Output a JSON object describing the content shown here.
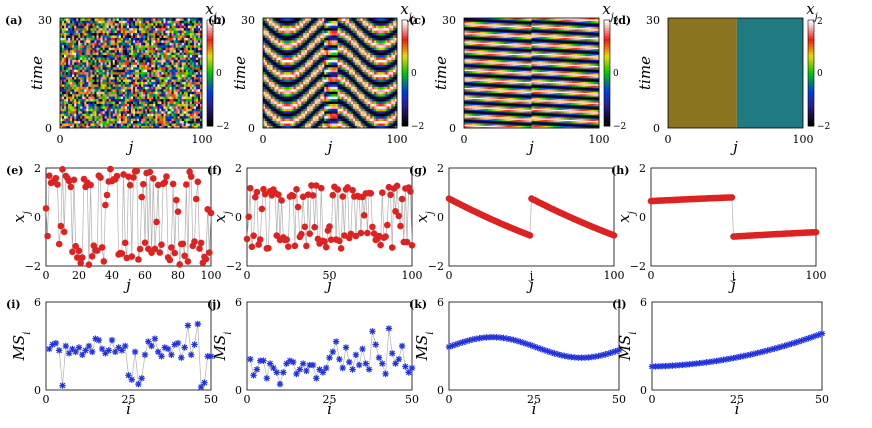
{
  "chart_data": [
    {
      "id": "a",
      "label": "(a)",
      "type": "heatmap",
      "xlabel": "j",
      "ylabel": "time",
      "colorbar_label": "x_j",
      "xticks": [
        "0",
        "100"
      ],
      "yticks": [
        "0",
        "30"
      ],
      "colorbar_ticks": [
        "2",
        "0",
        "−2"
      ],
      "xlim": [
        0,
        100
      ],
      "ylim": [
        0,
        30
      ],
      "clim": [
        -2,
        2
      ],
      "pattern": "incoherent"
    },
    {
      "id": "b",
      "label": "(b)",
      "type": "heatmap",
      "xlabel": "j",
      "ylabel": "time",
      "colorbar_label": "x_j",
      "xticks": [
        "0",
        "100"
      ],
      "yticks": [
        "0",
        "30"
      ],
      "colorbar_ticks": [
        "2",
        "0",
        "−2"
      ],
      "xlim": [
        0,
        100
      ],
      "ylim": [
        0,
        30
      ],
      "clim": [
        -2,
        2
      ],
      "pattern": "chimera-waves"
    },
    {
      "id": "c",
      "label": "(c)",
      "type": "heatmap",
      "xlabel": "j",
      "ylabel": "time",
      "colorbar_label": "x_j",
      "xticks": [
        "0",
        "100"
      ],
      "yticks": [
        "0",
        "30"
      ],
      "colorbar_ticks": [
        "2",
        "0",
        "−2"
      ],
      "xlim": [
        0,
        100
      ],
      "ylim": [
        0,
        30
      ],
      "clim": [
        -2,
        2
      ],
      "pattern": "traveling-wave"
    },
    {
      "id": "d",
      "label": "(d)",
      "type": "heatmap",
      "xlabel": "j",
      "ylabel": "time",
      "colorbar_label": "x_j",
      "xticks": [
        "0",
        "100"
      ],
      "yticks": [
        "0",
        "30"
      ],
      "colorbar_ticks": [
        "2",
        "0",
        "−2"
      ],
      "xlim": [
        0,
        100
      ],
      "ylim": [
        0,
        30
      ],
      "clim": [
        -2,
        2
      ],
      "pattern": "steady-two-cluster"
    },
    {
      "id": "e",
      "label": "(e)",
      "type": "scatter",
      "xlabel": "j",
      "ylabel": "x_j",
      "xticks": [
        "0",
        "20",
        "40",
        "60",
        "80",
        "100"
      ],
      "yticks": [
        "−2",
        "0",
        "2"
      ],
      "xlim": [
        0,
        100
      ],
      "ylim": [
        -2,
        2
      ],
      "color": "#dd2222",
      "marker": "circle",
      "connect": true,
      "pattern": "random-2"
    },
    {
      "id": "f",
      "label": "(f)",
      "type": "scatter",
      "xlabel": "j",
      "ylabel": "x_j",
      "xticks": [
        "0",
        "50",
        "100"
      ],
      "yticks": [
        "−2",
        "0",
        "2"
      ],
      "xlim": [
        0,
        100
      ],
      "ylim": [
        -2,
        2
      ],
      "color": "#dd2222",
      "marker": "circle",
      "connect": true,
      "pattern": "random-1.3"
    },
    {
      "id": "g",
      "label": "(g)",
      "type": "line",
      "xlabel": "j",
      "ylabel": "x_j",
      "xticks": [
        "0",
        "j",
        "100"
      ],
      "yticks": [
        "−2",
        "0",
        "2"
      ],
      "xlim": [
        0,
        100
      ],
      "ylim": [
        -2,
        2
      ],
      "color": "#dd2222",
      "marker": "circle",
      "connect": true,
      "segments": [
        [
          0,
          0.75,
          49,
          -0.75
        ],
        [
          50,
          0.75,
          100,
          -0.75
        ]
      ]
    },
    {
      "id": "h",
      "label": "(h)",
      "type": "line",
      "xlabel": "j",
      "ylabel": "x_j",
      "xticks": [
        "0",
        "j",
        "100"
      ],
      "yticks": [
        "−2",
        "0",
        "2"
      ],
      "xlim": [
        0,
        100
      ],
      "ylim": [
        -2,
        2
      ],
      "color": "#dd2222",
      "marker": "circle",
      "connect": true,
      "segments": [
        [
          0,
          0.65,
          49,
          0.8
        ],
        [
          50,
          -0.8,
          100,
          -0.62
        ]
      ]
    },
    {
      "id": "i",
      "label": "(i)",
      "type": "scatter",
      "xlabel": "i",
      "ylabel": "MS_i",
      "xticks": [
        "0",
        "25",
        "50"
      ],
      "yticks": [
        "0",
        "6"
      ],
      "xlim": [
        0,
        50
      ],
      "ylim": [
        0,
        6
      ],
      "color": "#2233dd",
      "marker": "star",
      "connect": true,
      "x": [
        1,
        2,
        3,
        4,
        5,
        6,
        7,
        8,
        9,
        10,
        11,
        12,
        13,
        14,
        15,
        16,
        17,
        18,
        19,
        20,
        21,
        22,
        23,
        24,
        25,
        26,
        27,
        28,
        29,
        30,
        31,
        32,
        33,
        34,
        35,
        36,
        37,
        38,
        39,
        40,
        41,
        42,
        43,
        44,
        45,
        46,
        47,
        48,
        49,
        50
      ],
      "y": [
        2.8,
        3.1,
        3.2,
        2.7,
        0.3,
        3.0,
        2.5,
        2.8,
        2.6,
        2.9,
        2.4,
        2.7,
        3.0,
        2.6,
        3.5,
        3.4,
        2.8,
        2.5,
        2.7,
        3.4,
        2.6,
        2.9,
        2.7,
        3.0,
        1.0,
        0.7,
        2.6,
        0.4,
        0.8,
        2.4,
        3.3,
        3.0,
        3.5,
        2.6,
        2.3,
        2.9,
        2.8,
        2.4,
        3.1,
        3.2,
        2.2,
        2.9,
        4.4,
        2.4,
        3.1,
        4.5,
        0.2,
        0.5,
        2.3,
        2.3
      ]
    },
    {
      "id": "j",
      "label": "(j)",
      "type": "scatter",
      "xlabel": "i",
      "ylabel": "MS_i",
      "xticks": [
        "0",
        "25",
        "50"
      ],
      "yticks": [
        "0",
        "6"
      ],
      "xlim": [
        0,
        50
      ],
      "ylim": [
        0,
        6
      ],
      "color": "#2233dd",
      "marker": "star",
      "connect": true,
      "x": [
        1,
        2,
        3,
        4,
        5,
        6,
        7,
        8,
        9,
        10,
        11,
        12,
        13,
        14,
        15,
        16,
        17,
        18,
        19,
        20,
        21,
        22,
        23,
        24,
        25,
        26,
        27,
        28,
        29,
        30,
        31,
        32,
        33,
        34,
        35,
        36,
        37,
        38,
        39,
        40,
        41,
        42,
        43,
        44,
        45,
        46,
        47,
        48,
        49,
        50
      ],
      "y": [
        2.1,
        1.0,
        1.4,
        2.0,
        2.0,
        0.8,
        1.8,
        1.5,
        1.2,
        0.4,
        1.2,
        1.8,
        2.0,
        1.9,
        1.1,
        1.4,
        1.8,
        1.3,
        1.7,
        1.7,
        0.8,
        1.4,
        1.2,
        1.5,
        2.2,
        2.6,
        3.3,
        2.1,
        1.5,
        2.9,
        1.9,
        1.4,
        2.4,
        1.7,
        2.8,
        1.8,
        1.4,
        4.0,
        3.1,
        2.2,
        1.8,
        1.1,
        4.2,
        2.5,
        1.8,
        2.1,
        3.0,
        1.6,
        1.2,
        1.5
      ]
    },
    {
      "id": "k",
      "label": "(k)",
      "type": "line",
      "xlabel": "i",
      "ylabel": "MS_i",
      "xticks": [
        "0",
        "25",
        "50"
      ],
      "yticks": [
        "0",
        "6"
      ],
      "xlim": [
        0,
        50
      ],
      "ylim": [
        0,
        6
      ],
      "color": "#2233dd",
      "marker": "star",
      "connect": true,
      "curve": "wave"
    },
    {
      "id": "l",
      "label": "(l)",
      "type": "line",
      "xlabel": "i",
      "ylabel": "MS_i",
      "xticks": [
        "0",
        "25",
        "50"
      ],
      "yticks": [
        "0",
        "6"
      ],
      "xlim": [
        0,
        50
      ],
      "ylim": [
        0,
        6
      ],
      "color": "#2233dd",
      "marker": "star",
      "connect": true,
      "curve": "rise"
    }
  ]
}
